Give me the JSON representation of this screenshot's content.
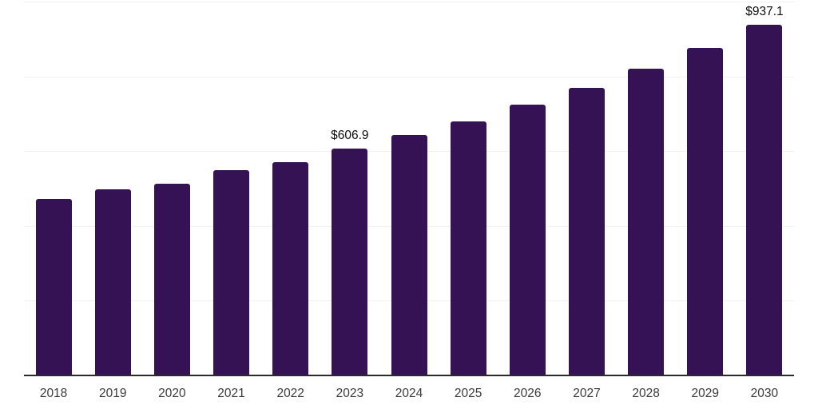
{
  "chart_data": {
    "type": "bar",
    "title": "",
    "xlabel": "",
    "ylabel": "",
    "categories": [
      "2018",
      "2019",
      "2020",
      "2021",
      "2022",
      "2023",
      "2024",
      "2025",
      "2026",
      "2027",
      "2028",
      "2029",
      "2030"
    ],
    "values": [
      471.5,
      497.8,
      512.3,
      548.6,
      570.9,
      606.9,
      641.8,
      680.2,
      723.6,
      769.9,
      821.1,
      875.1,
      937.1
    ],
    "data_labels": [
      {
        "index": 5,
        "text": "$606.9"
      },
      {
        "index": 12,
        "text": "$937.1"
      }
    ],
    "ylim": [
      0,
      1000
    ],
    "grid_step": 200,
    "grid": "horizontal-only",
    "y_tick_labels": "none",
    "legend": "none",
    "colors": {
      "bar": "#351253",
      "axis_line": "#2b2b2b",
      "gridline": "#f2f2f2",
      "top_gridline": "#ededed",
      "x_tick_label": "#3b3b3b",
      "data_label": "#0d0d0d",
      "background": "#ffffff"
    }
  }
}
